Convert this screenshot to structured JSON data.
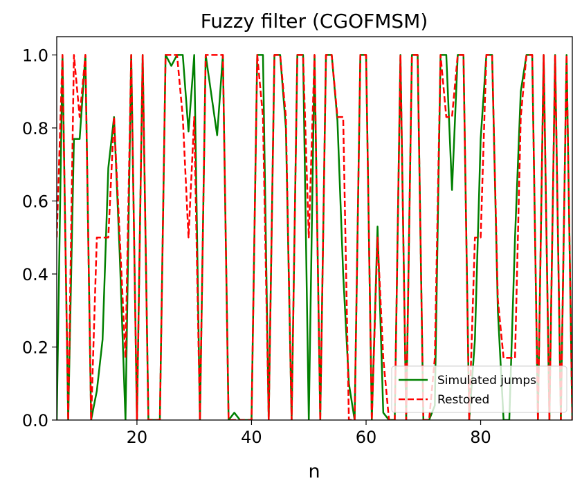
{
  "chart_data": {
    "type": "line",
    "title": "Fuzzy filter (CGOFMSM)",
    "xlabel": "n",
    "ylabel": "",
    "xlim": [
      6,
      96
    ],
    "ylim": [
      0,
      1.05
    ],
    "x_ticks": [
      20,
      40,
      60,
      80
    ],
    "x_tick_labels": [
      "20",
      "40",
      "60",
      "80"
    ],
    "y_ticks": [
      0.0,
      0.2,
      0.4,
      0.6,
      0.8,
      1.0
    ],
    "y_tick_labels": [
      "0.0",
      "0.2",
      "0.4",
      "0.6",
      "0.8",
      "1.0"
    ],
    "grid": false,
    "legend_position": "lower-right",
    "x": [
      6,
      7,
      8,
      9,
      10,
      11,
      12,
      13,
      14,
      15,
      16,
      17,
      18,
      19,
      20,
      21,
      22,
      23,
      24,
      25,
      26,
      27,
      28,
      29,
      30,
      31,
      32,
      33,
      34,
      35,
      36,
      37,
      38,
      39,
      40,
      41,
      42,
      43,
      44,
      45,
      46,
      47,
      48,
      49,
      50,
      51,
      52,
      53,
      54,
      55,
      56,
      57,
      58,
      59,
      60,
      61,
      62,
      63,
      64,
      65,
      66,
      67,
      68,
      69,
      70,
      71,
      72,
      73,
      74,
      75,
      76,
      77,
      78,
      79,
      80,
      81,
      82,
      83,
      84,
      85,
      86,
      87,
      88,
      89,
      90,
      91,
      92,
      93,
      94,
      95,
      96
    ],
    "series": [
      {
        "name": "Simulated jumps",
        "color": "#008000",
        "dash": "solid",
        "values": [
          0,
          1,
          0,
          0.77,
          0.77,
          1,
          0,
          0.08,
          0.22,
          0.69,
          0.83,
          0.45,
          0,
          1,
          0,
          1,
          0,
          0,
          0,
          1,
          0.97,
          1,
          1,
          0.79,
          1,
          0,
          1,
          0.89,
          0.78,
          1,
          0,
          0.02,
          0,
          0,
          0,
          1,
          1,
          0,
          1,
          1,
          0.8,
          0,
          1,
          1,
          0,
          1,
          0,
          1,
          1,
          0.82,
          0.4,
          0.1,
          0,
          1,
          1,
          0,
          0.53,
          0.02,
          0,
          0,
          1,
          0,
          1,
          1,
          0,
          0,
          0.04,
          1,
          1,
          0.63,
          1,
          1,
          0,
          0.22,
          0.77,
          1,
          1,
          0.3,
          0,
          0,
          0.5,
          0.9,
          1,
          1,
          0,
          1,
          0,
          1,
          0,
          1,
          0
        ]
      },
      {
        "name": "Restored",
        "color": "#ff0000",
        "dash": "dashed",
        "values": [
          0.5,
          1,
          0,
          1,
          0.83,
          1,
          0,
          0.5,
          0.5,
          0.5,
          0.83,
          0.5,
          0.17,
          1,
          0,
          1,
          0,
          0,
          0,
          1,
          1,
          1,
          0.83,
          0.5,
          0.83,
          0,
          1,
          1,
          1,
          1,
          0,
          0,
          0,
          0,
          0,
          1,
          0.83,
          0,
          1,
          1,
          0.83,
          0,
          1,
          1,
          0.5,
          1,
          0,
          1,
          1,
          0.83,
          0.83,
          0,
          0,
          1,
          1,
          0,
          0.5,
          0.17,
          0,
          0,
          1,
          0,
          1,
          1,
          0,
          0,
          0.17,
          1,
          0.83,
          0.83,
          1,
          1,
          0,
          0.5,
          0.5,
          1,
          1,
          0.33,
          0.17,
          0.17,
          0.17,
          0.83,
          1,
          1,
          0,
          1,
          0,
          1,
          0,
          1,
          0
        ]
      }
    ]
  }
}
